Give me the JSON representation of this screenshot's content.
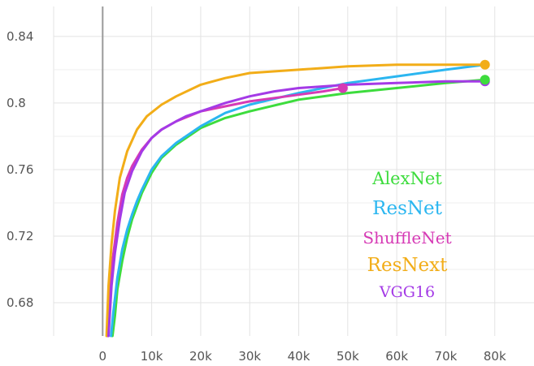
{
  "chart_data": {
    "type": "line",
    "title": "",
    "xlabel": "",
    "ylabel": "",
    "xlim": [
      -10000,
      88000
    ],
    "ylim": [
      0.66,
      0.858
    ],
    "x_ticks": [
      0,
      10000,
      20000,
      30000,
      40000,
      50000,
      60000,
      70000,
      80000
    ],
    "x_tick_labels": [
      "0",
      "10k",
      "20k",
      "30k",
      "40k",
      "50k",
      "60k",
      "70k",
      "80k"
    ],
    "y_ticks": [
      0.68,
      0.72,
      0.76,
      0.8,
      0.84
    ],
    "y_tick_labels": [
      "0.68",
      "0.72",
      "0.76",
      "0.8",
      "0.84"
    ],
    "grid": true,
    "legend_position": "center-right",
    "series": [
      {
        "name": "AlexNet",
        "color": "#3ddc3d",
        "points": [
          [
            2000,
            0.66
          ],
          [
            2500,
            0.672
          ],
          [
            3000,
            0.688
          ],
          [
            4000,
            0.705
          ],
          [
            5000,
            0.719
          ],
          [
            6000,
            0.73
          ],
          [
            7000,
            0.738
          ],
          [
            8000,
            0.746
          ],
          [
            10000,
            0.758
          ],
          [
            12000,
            0.767
          ],
          [
            15000,
            0.775
          ],
          [
            20000,
            0.785
          ],
          [
            25000,
            0.791
          ],
          [
            30000,
            0.795
          ],
          [
            40000,
            0.802
          ],
          [
            50000,
            0.806
          ],
          [
            60000,
            0.809
          ],
          [
            70000,
            0.812
          ],
          [
            78000,
            0.814
          ]
        ]
      },
      {
        "name": "ResNet",
        "color": "#2bb6f0",
        "points": [
          [
            1700,
            0.66
          ],
          [
            2200,
            0.675
          ],
          [
            3000,
            0.695
          ],
          [
            4000,
            0.712
          ],
          [
            5000,
            0.724
          ],
          [
            6000,
            0.733
          ],
          [
            7000,
            0.741
          ],
          [
            8000,
            0.748
          ],
          [
            10000,
            0.76
          ],
          [
            12000,
            0.768
          ],
          [
            15000,
            0.776
          ],
          [
            20000,
            0.786
          ],
          [
            25000,
            0.794
          ],
          [
            30000,
            0.799
          ],
          [
            40000,
            0.806
          ],
          [
            50000,
            0.812
          ],
          [
            60000,
            0.816
          ],
          [
            70000,
            0.82
          ],
          [
            78000,
            0.823
          ]
        ]
      },
      {
        "name": "ShuffleNet",
        "color": "#d63ab5",
        "points": [
          [
            1000,
            0.66
          ],
          [
            1500,
            0.685
          ],
          [
            2000,
            0.705
          ],
          [
            3000,
            0.728
          ],
          [
            4000,
            0.745
          ],
          [
            5000,
            0.755
          ],
          [
            6000,
            0.762
          ],
          [
            8000,
            0.772
          ],
          [
            10000,
            0.779
          ],
          [
            12000,
            0.784
          ],
          [
            15000,
            0.789
          ],
          [
            20000,
            0.795
          ],
          [
            25000,
            0.798
          ],
          [
            30000,
            0.801
          ],
          [
            35000,
            0.803
          ],
          [
            40000,
            0.805
          ],
          [
            45000,
            0.807
          ],
          [
            49000,
            0.809
          ]
        ]
      },
      {
        "name": "ResNext",
        "color": "#f2ad18",
        "points": [
          [
            800,
            0.66
          ],
          [
            1200,
            0.69
          ],
          [
            1800,
            0.715
          ],
          [
            2500,
            0.735
          ],
          [
            3500,
            0.755
          ],
          [
            5000,
            0.771
          ],
          [
            7000,
            0.784
          ],
          [
            9000,
            0.792
          ],
          [
            12000,
            0.799
          ],
          [
            15000,
            0.804
          ],
          [
            20000,
            0.811
          ],
          [
            25000,
            0.815
          ],
          [
            30000,
            0.818
          ],
          [
            40000,
            0.82
          ],
          [
            50000,
            0.822
          ],
          [
            60000,
            0.823
          ],
          [
            70000,
            0.823
          ],
          [
            78000,
            0.823
          ]
        ]
      },
      {
        "name": "VGG16",
        "color": "#a43ae6",
        "points": [
          [
            1200,
            0.66
          ],
          [
            1800,
            0.69
          ],
          [
            2500,
            0.71
          ],
          [
            3500,
            0.73
          ],
          [
            4500,
            0.746
          ],
          [
            6000,
            0.759
          ],
          [
            8000,
            0.771
          ],
          [
            10000,
            0.779
          ],
          [
            12000,
            0.784
          ],
          [
            15000,
            0.789
          ],
          [
            17000,
            0.792
          ],
          [
            20000,
            0.795
          ],
          [
            25000,
            0.8
          ],
          [
            30000,
            0.804
          ],
          [
            35000,
            0.807
          ],
          [
            40000,
            0.809
          ],
          [
            50000,
            0.811
          ],
          [
            60000,
            0.812
          ],
          [
            70000,
            0.813
          ],
          [
            78000,
            0.813
          ]
        ]
      }
    ],
    "legend_order": [
      "AlexNet",
      "ResNet",
      "ShuffleNet",
      "ResNext",
      "VGG16"
    ],
    "end_markers": [
      {
        "series": "ShuffleNet",
        "x": 49000,
        "y": 0.809
      },
      {
        "series": "VGG16",
        "x": 78000,
        "y": 0.813
      },
      {
        "series": "AlexNet",
        "x": 78000,
        "y": 0.814
      },
      {
        "series": "ResNext",
        "x": 78000,
        "y": 0.823
      }
    ]
  }
}
